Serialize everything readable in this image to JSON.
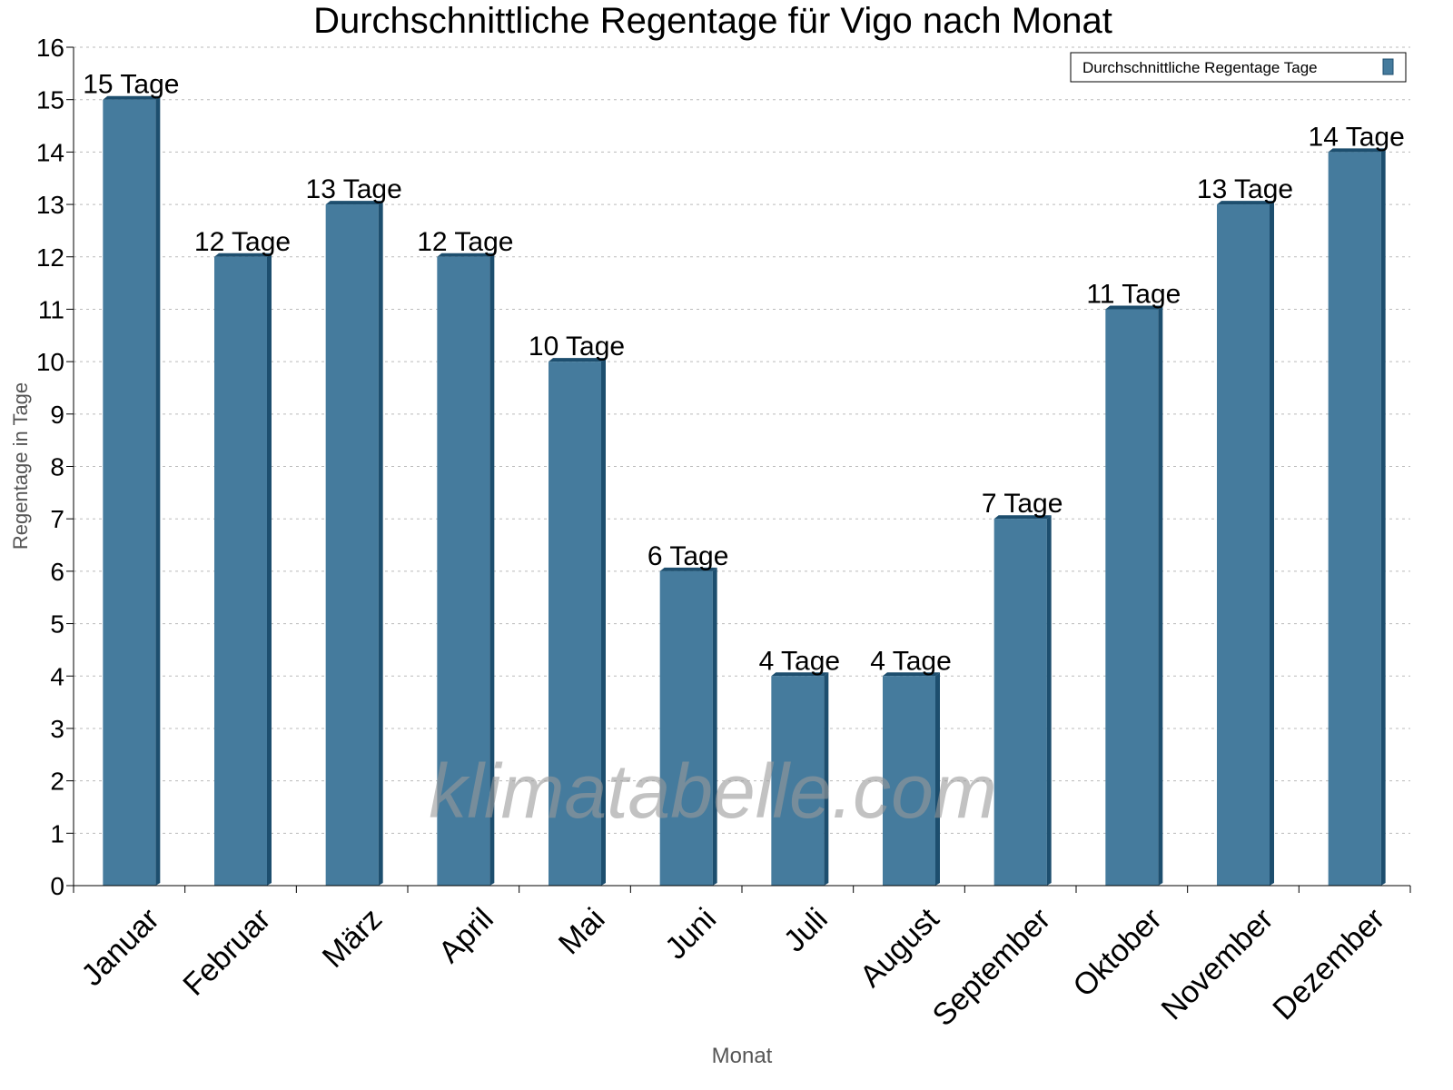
{
  "chart_data": {
    "type": "bar",
    "title": "Durchschnittliche Regentage für Vigo nach Monat",
    "xlabel": "Monat",
    "ylabel": "Regentage in Tage",
    "categories": [
      "Januar",
      "Februar",
      "März",
      "April",
      "Mai",
      "Juni",
      "Juli",
      "August",
      "September",
      "Oktober",
      "November",
      "Dezember"
    ],
    "series": [
      {
        "name": "Durchschnittliche Regentage Tage",
        "values": [
          15,
          12,
          13,
          12,
          10,
          6,
          4,
          4,
          7,
          11,
          13,
          14
        ]
      }
    ],
    "data_labels": [
      "15 Tage",
      "12 Tage",
      "13 Tage",
      "12 Tage",
      "10 Tage",
      "6 Tage",
      "4 Tage",
      "4 Tage",
      "7 Tage",
      "11 Tage",
      "13 Tage",
      "14 Tage"
    ],
    "ylim": [
      0,
      16
    ],
    "yticks": [
      0,
      1,
      2,
      3,
      4,
      5,
      6,
      7,
      8,
      9,
      10,
      11,
      12,
      13,
      14,
      15,
      16
    ],
    "grid": true,
    "legend_position": "top-right",
    "colors": {
      "bar": "#457b9d",
      "bar_side": "#1d4e6e"
    },
    "watermark": "klimatabelle.com"
  }
}
